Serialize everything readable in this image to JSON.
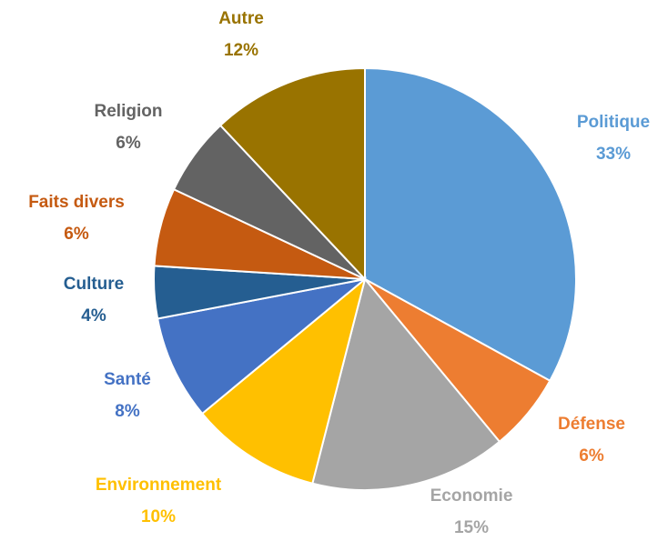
{
  "chart_data": {
    "type": "pie",
    "slices": [
      {
        "label": "Politique",
        "value": 33,
        "value_label": "33%",
        "color": "#5B9BD5"
      },
      {
        "label": "Défense",
        "value": 6,
        "value_label": "6%",
        "color": "#ED7D31"
      },
      {
        "label": "Economie",
        "value": 15,
        "value_label": "15%",
        "color": "#A5A5A5"
      },
      {
        "label": "Environnement",
        "value": 10,
        "value_label": "10%",
        "color": "#FFC000"
      },
      {
        "label": "Santé",
        "value": 8,
        "value_label": "8%",
        "color": "#4472C4"
      },
      {
        "label": "Culture",
        "value": 4,
        "value_label": "4%",
        "color": "#255E91"
      },
      {
        "label": "Faits divers",
        "value": 6,
        "value_label": "6%",
        "color": "#C55A11"
      },
      {
        "label": "Religion",
        "value": 6,
        "value_label": "6%",
        "color": "#636363"
      },
      {
        "label": "Autre",
        "value": 12,
        "value_label": "12%",
        "color": "#997300"
      }
    ],
    "start": "12 o'clock",
    "direction": "clockwise",
    "legend": "none"
  }
}
